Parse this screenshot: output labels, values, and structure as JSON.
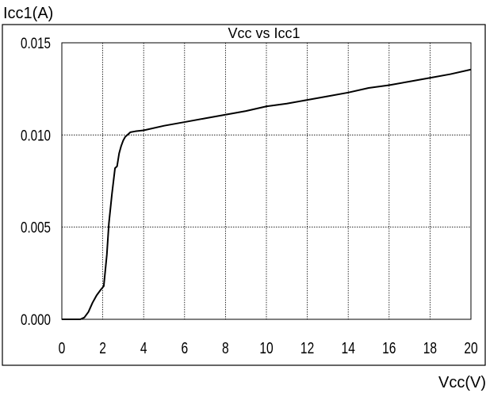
{
  "chart_data": {
    "type": "line",
    "title": "Vcc vs Icc1",
    "xlabel": "Vcc(V)",
    "ylabel": "Icc1(A)",
    "xlim": [
      0,
      20
    ],
    "ylim": [
      0,
      0.015
    ],
    "xticks": [
      "0",
      "2",
      "4",
      "6",
      "8",
      "10",
      "12",
      "14",
      "16",
      "18",
      "20"
    ],
    "yticks": [
      "0.000",
      "0.005",
      "0.010",
      "0.015"
    ],
    "grid": true,
    "series": [
      {
        "x": [
          0,
          0.5,
          0.9,
          1.1,
          1.3,
          1.5,
          1.7,
          1.9,
          2.05,
          2.2,
          2.3,
          2.45,
          2.6,
          2.7,
          2.8,
          2.9,
          3.0,
          3.1,
          3.2,
          3.35,
          3.6,
          4.0,
          5,
          6,
          7,
          8,
          9,
          10,
          11,
          12,
          13,
          14,
          15,
          16,
          17,
          18,
          19,
          20
        ],
        "y": [
          0,
          0,
          0,
          0.0001,
          0.0004,
          0.0009,
          0.0013,
          0.0016,
          0.0018,
          0.0035,
          0.0052,
          0.0068,
          0.0082,
          0.0083,
          0.009,
          0.0094,
          0.0097,
          0.0099,
          0.01,
          0.01015,
          0.0102,
          0.01025,
          0.0105,
          0.0107,
          0.0109,
          0.0111,
          0.0113,
          0.01155,
          0.0117,
          0.0119,
          0.0121,
          0.0123,
          0.01255,
          0.0127,
          0.0129,
          0.0131,
          0.0133,
          0.01355
        ]
      }
    ]
  }
}
